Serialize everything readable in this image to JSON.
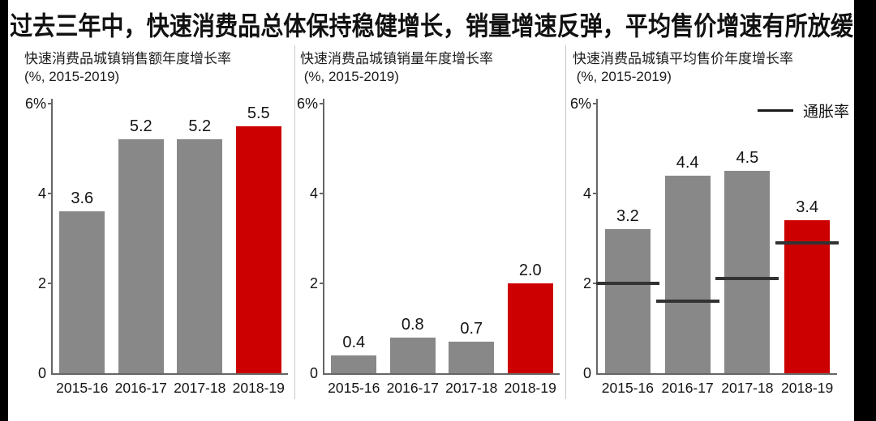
{
  "page": {
    "title": "过去三年中，快速消费品总体保持稳健增长，销量增速反弹，平均售价增速有所放缓"
  },
  "colors": {
    "bar_gray": "#888888",
    "bar_red": "#cc0000",
    "inflation_line": "#333333",
    "axis": "#666666"
  },
  "chart_data": [
    {
      "type": "bar",
      "title": "快速消费品城镇销售额年度增长率",
      "subtitle": "(%, 2015-2019)",
      "categories": [
        "2015-16",
        "2016-17",
        "2017-18",
        "2018-19"
      ],
      "values": [
        3.6,
        5.2,
        5.2,
        5.5
      ],
      "value_labels": [
        "3.6",
        "5.2",
        "5.2",
        "5.5"
      ],
      "bar_color": "#888888",
      "highlight_index": 3,
      "highlight_color": "#cc0000",
      "ylim": [
        0,
        6
      ],
      "yticks": [
        {
          "value": 0,
          "label": "0"
        },
        {
          "value": 2,
          "label": "2"
        },
        {
          "value": 4,
          "label": "4"
        },
        {
          "value": 6,
          "label": "6%"
        }
      ],
      "grid": false
    },
    {
      "type": "bar",
      "title": "快速消费品城镇销量年度增长率",
      "subtitle": " (%, 2015-2019)",
      "categories": [
        "2015-16",
        "2016-17",
        "2017-18",
        "2018-19"
      ],
      "values": [
        0.4,
        0.8,
        0.7,
        2.0
      ],
      "value_labels": [
        "0.4",
        "0.8",
        "0.7",
        "2.0"
      ],
      "bar_color": "#888888",
      "highlight_index": 3,
      "highlight_color": "#cc0000",
      "ylim": [
        0,
        6
      ],
      "yticks": [
        {
          "value": 0,
          "label": "0"
        },
        {
          "value": 2,
          "label": "2"
        },
        {
          "value": 4,
          "label": "4"
        },
        {
          "value": 6,
          "label": "6%"
        }
      ],
      "grid": false
    },
    {
      "type": "bar",
      "title": "快速消费品城镇平均售价年度增长率",
      "subtitle": " (%, 2015-2019)",
      "categories": [
        "2015-16",
        "2016-17",
        "2017-18",
        "2018-19"
      ],
      "values": [
        3.2,
        4.4,
        4.5,
        3.4
      ],
      "value_labels": [
        "3.2",
        "4.4",
        "4.5",
        "3.4"
      ],
      "bar_color": "#888888",
      "highlight_index": 3,
      "highlight_color": "#cc0000",
      "ylim": [
        0,
        6
      ],
      "yticks": [
        {
          "value": 0,
          "label": "0"
        },
        {
          "value": 2,
          "label": "2"
        },
        {
          "value": 4,
          "label": "4"
        },
        {
          "value": 6,
          "label": "6%"
        }
      ],
      "grid": false,
      "line_series": {
        "name": "通胀率",
        "values": [
          2.0,
          1.6,
          2.1,
          2.9
        ],
        "color": "#333333"
      },
      "legend_position": "top-right"
    }
  ]
}
